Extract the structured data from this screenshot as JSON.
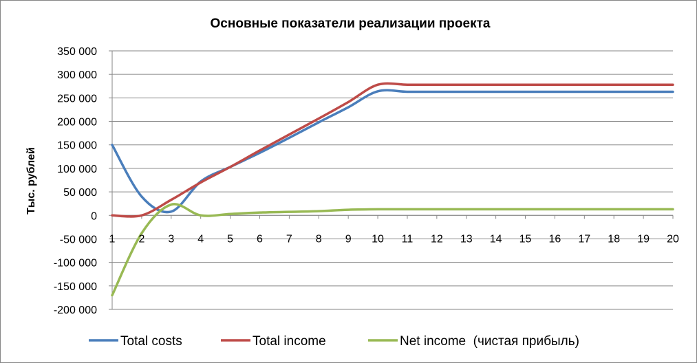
{
  "chart_data": {
    "type": "line",
    "title": "Основные показатели реализации проекта",
    "xlabel": "",
    "ylabel": "Тыс. рублей",
    "x": [
      1,
      2,
      3,
      4,
      5,
      6,
      7,
      8,
      9,
      10,
      11,
      12,
      13,
      14,
      15,
      16,
      17,
      18,
      19,
      20
    ],
    "x_tick_labels": [
      "1",
      "2",
      "3",
      "4",
      "5",
      "6",
      "7",
      "8",
      "9",
      "10",
      "11",
      "12",
      "13",
      "14",
      "15",
      "16",
      "17",
      "18",
      "19",
      "20"
    ],
    "ylim": [
      -200000,
      350000
    ],
    "y_ticks": [
      350000,
      300000,
      250000,
      200000,
      150000,
      100000,
      50000,
      0,
      -50000,
      -100000,
      -150000,
      -200000
    ],
    "y_tick_labels": [
      "350 000",
      "300 000",
      "250 000",
      "200 000",
      "150 000",
      "100 000",
      "50 000",
      "0",
      "-50 000",
      "-100 000",
      "-150 000",
      "-200 000"
    ],
    "grid": "horizontal",
    "legend_position": "bottom",
    "smooth": true,
    "series": [
      {
        "name": "Total costs",
        "color": "#4A7EBB",
        "values": [
          150000,
          40000,
          8000,
          72000,
          103000,
          133000,
          165000,
          198000,
          230000,
          264000,
          263000,
          263000,
          263000,
          263000,
          263000,
          263000,
          263000,
          263000,
          263000,
          263000
        ]
      },
      {
        "name": "Total income",
        "color": "#BE4B48",
        "values": [
          0,
          0,
          33000,
          70000,
          103000,
          138000,
          172000,
          206000,
          241000,
          278000,
          278000,
          278000,
          278000,
          278000,
          278000,
          278000,
          278000,
          278000,
          278000,
          278000
        ]
      },
      {
        "name": "Net income  (чистая прибыль)",
        "color": "#98B954",
        "values": [
          -170000,
          -38000,
          23000,
          0,
          3000,
          6000,
          7500,
          9000,
          12000,
          13000,
          13000,
          13000,
          13000,
          13000,
          13000,
          13000,
          13000,
          13000,
          13000,
          13000
        ]
      }
    ]
  }
}
